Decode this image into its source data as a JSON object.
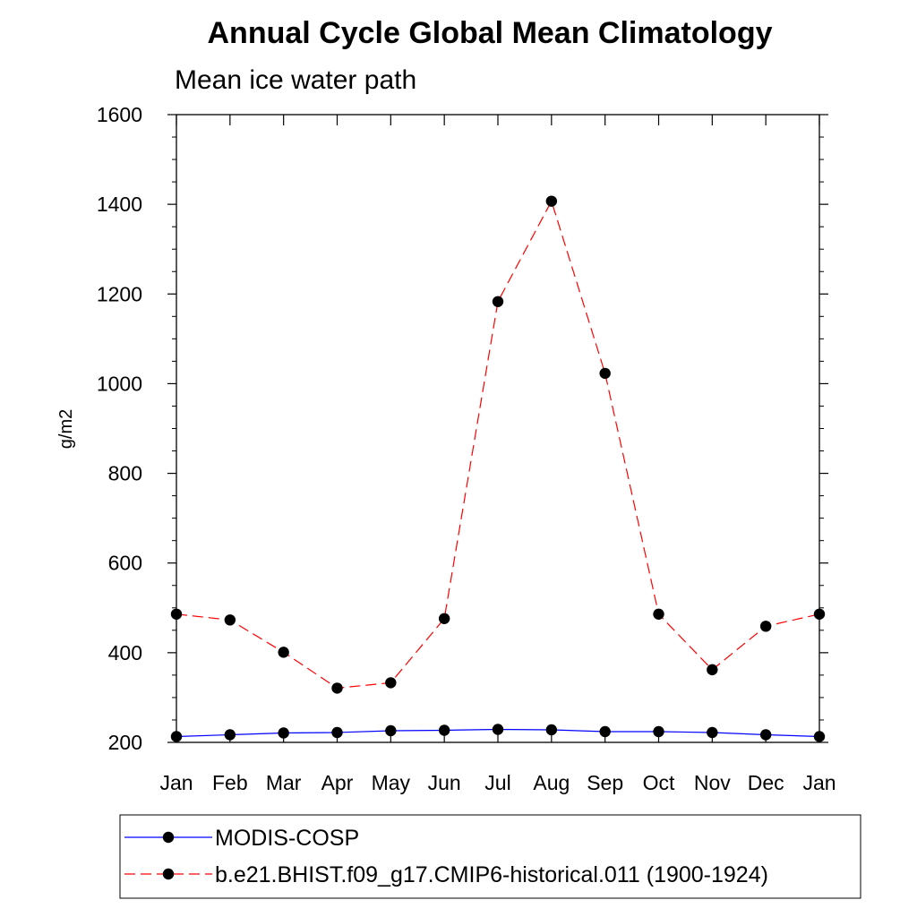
{
  "chart_data": {
    "type": "line",
    "title": "Annual Cycle Global Mean Climatology",
    "subtitle": "Mean ice water path",
    "xlabel": "",
    "ylabel": "g/m2",
    "categories": [
      "Jan",
      "Feb",
      "Mar",
      "Apr",
      "May",
      "Jun",
      "Jul",
      "Aug",
      "Sep",
      "Oct",
      "Nov",
      "Dec",
      "Jan"
    ],
    "ylim": [
      200,
      1600
    ],
    "yticks": [
      200,
      400,
      600,
      800,
      1000,
      1200,
      1400,
      1600
    ],
    "grid": false,
    "legend_position": "bottom",
    "series": [
      {
        "name": "MODIS-COSP",
        "color": "#0000ff",
        "line_style": "solid",
        "marker": "filled-circle",
        "values": [
          213,
          217,
          221,
          222,
          226,
          227,
          229,
          228,
          224,
          224,
          222,
          217,
          213
        ]
      },
      {
        "name": "b.e21.BHIST.f09_g17.CMIP6-historical.011 (1900-1924)",
        "color": "#ff0000",
        "line_style": "dashed",
        "marker": "filled-circle",
        "values": [
          486,
          473,
          401,
          321,
          333,
          476,
          1183,
          1407,
          1023,
          486,
          362,
          459,
          486
        ]
      }
    ]
  }
}
